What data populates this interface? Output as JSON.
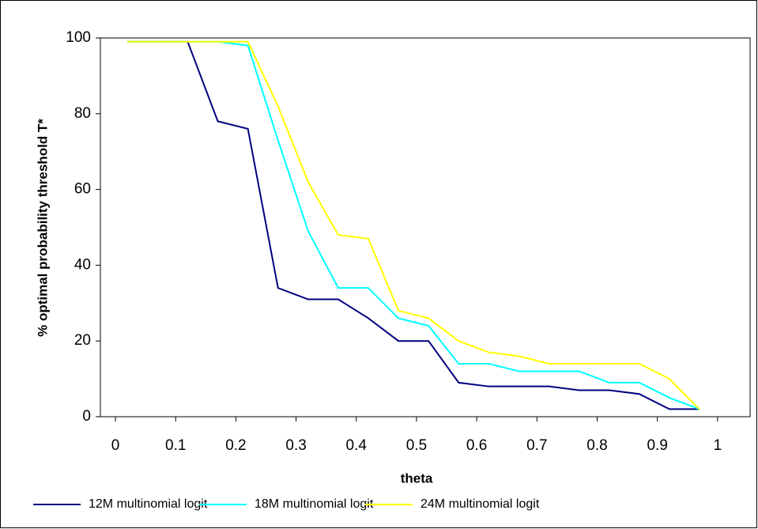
{
  "chart_data": {
    "type": "line",
    "xlabel": "theta",
    "ylabel": "% optimal probability threshold T*",
    "x": [
      0.02,
      0.07,
      0.12,
      0.17,
      0.22,
      0.27,
      0.32,
      0.37,
      0.42,
      0.47,
      0.52,
      0.57,
      0.62,
      0.67,
      0.72,
      0.77,
      0.82,
      0.87,
      0.92,
      0.97
    ],
    "series": [
      {
        "name": "12M multinomial logit",
        "color": "#000080",
        "values": [
          99,
          99,
          99,
          78,
          76,
          34,
          31,
          31,
          26,
          20,
          20,
          9,
          8,
          8,
          8,
          7,
          7,
          6,
          2,
          2
        ]
      },
      {
        "name": "18M multinomial logit",
        "color": "#00ffff",
        "values": [
          99,
          99,
          99,
          99,
          98,
          73,
          49,
          34,
          34,
          26,
          24,
          14,
          14,
          12,
          12,
          12,
          9,
          9,
          5,
          2
        ]
      },
      {
        "name": "24M multinomial logit",
        "color": "#ffff00",
        "values": [
          99,
          99,
          99,
          99,
          99,
          82,
          62,
          48,
          47,
          28,
          26,
          20,
          17,
          16,
          14,
          14,
          14,
          14,
          10,
          2
        ]
      }
    ],
    "xlim": [
      -0.025,
      1.054
    ],
    "xticks": [
      0,
      0.1,
      0.2,
      0.3,
      0.4,
      0.5,
      0.6,
      0.7,
      0.8,
      0.9,
      1
    ],
    "ylim": [
      0,
      100
    ],
    "yticks": [
      0,
      20,
      40,
      60,
      80,
      100
    ],
    "grid": false,
    "legend": "bottom"
  }
}
